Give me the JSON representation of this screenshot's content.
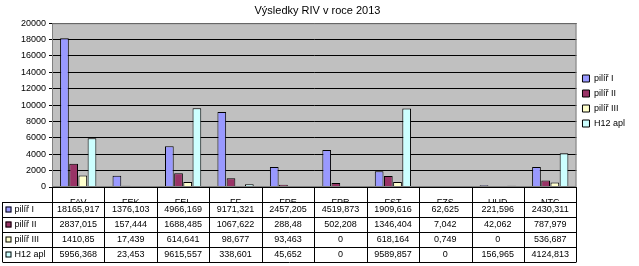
{
  "chart_data": {
    "type": "bar",
    "title": "Výsledky RIV v roce 2013",
    "categories": [
      "FAV",
      "FEK",
      "FEL",
      "FF",
      "FPE",
      "FPR",
      "FST",
      "FZS",
      "UUD",
      "NTC"
    ],
    "series": [
      {
        "name": "pilíř I",
        "color": "#9999FF",
        "values": [
          18165.917,
          1376.103,
          4966.169,
          9171.321,
          2457.205,
          4519.873,
          1909.616,
          62.625,
          221.596,
          2430.311
        ],
        "value_labels": [
          "18165,917",
          "1376,103",
          "4966,169",
          "9171,321",
          "2457,205",
          "4519,873",
          "1909,616",
          "62,625",
          "221,596",
          "2430,311"
        ]
      },
      {
        "name": "pilíř II",
        "color": "#993366",
        "values": [
          2837.015,
          157.444,
          1688.485,
          1067.622,
          288.48,
          502.208,
          1346.404,
          7.042,
          42.062,
          787.979
        ],
        "value_labels": [
          "2837,015",
          "157,444",
          "1688,485",
          "1067,622",
          "288,48",
          "502,208",
          "1346,404",
          "7,042",
          "42,062",
          "787,979"
        ]
      },
      {
        "name": "pilíř III",
        "color": "#FFFFCC",
        "values": [
          1410.85,
          17.439,
          614.641,
          98.677,
          93.463,
          0,
          618.164,
          0.749,
          0,
          536.687
        ],
        "value_labels": [
          "1410,85",
          "17,439",
          "614,641",
          "98,677",
          "93,463",
          "0",
          "618,164",
          "0,749",
          "0",
          "536,687"
        ]
      },
      {
        "name": "H12 apl",
        "color": "#CCFFFF",
        "values": [
          5956.368,
          23.453,
          9615.557,
          338.601,
          45.652,
          0,
          9589.857,
          0,
          156.965,
          4124.813
        ],
        "value_labels": [
          "5956,368",
          "23,453",
          "9615,557",
          "338,601",
          "45,652",
          "0",
          "9589,857",
          "0",
          "156,965",
          "4124,813"
        ]
      }
    ],
    "ylim": [
      0,
      20000
    ],
    "yticks": [
      0,
      2000,
      4000,
      6000,
      8000,
      10000,
      12000,
      14000,
      16000,
      18000,
      20000
    ],
    "grid": true,
    "legend": "right"
  }
}
